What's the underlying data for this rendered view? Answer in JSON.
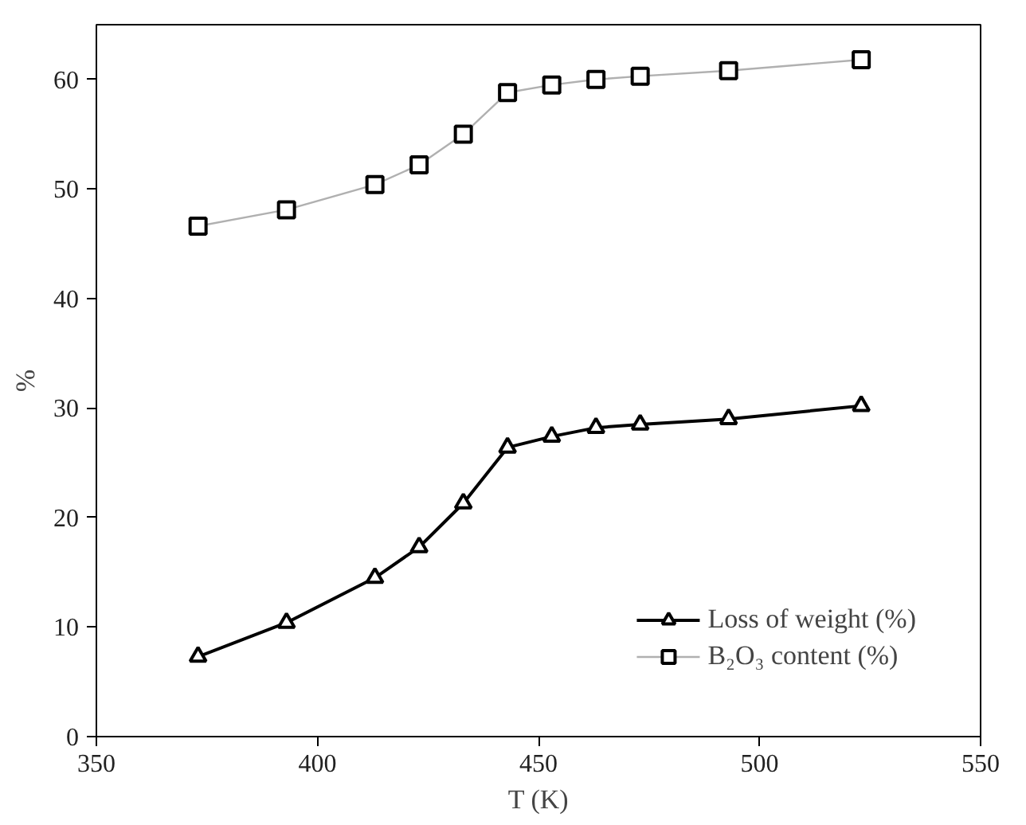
{
  "chart_data": {
    "type": "line",
    "xlabel": "T (K)",
    "ylabel": "%",
    "xlim": [
      350,
      550
    ],
    "xticks": [
      350,
      400,
      450,
      500,
      550
    ],
    "ylim": [
      0,
      65
    ],
    "yticks": [
      0,
      10,
      20,
      30,
      40,
      50,
      60
    ],
    "grid": false,
    "legend": "bottom right",
    "x": [
      373,
      393,
      413,
      423,
      433,
      443,
      453,
      463,
      473,
      493,
      523
    ],
    "series": [
      {
        "name": "Loss of weight (%)",
        "color": "#000000",
        "marker": "triangle",
        "values": [
          7.3,
          10.4,
          14.5,
          17.3,
          21.3,
          26.4,
          27.4,
          28.2,
          28.5,
          29.0,
          30.2
        ]
      },
      {
        "name": "B₂O₃ content (%)",
        "color": "#b0b0b0",
        "marker": "square",
        "values": [
          46.6,
          48.1,
          50.4,
          52.2,
          55.0,
          58.8,
          59.5,
          60.0,
          60.3,
          60.8,
          61.8
        ]
      }
    ]
  }
}
